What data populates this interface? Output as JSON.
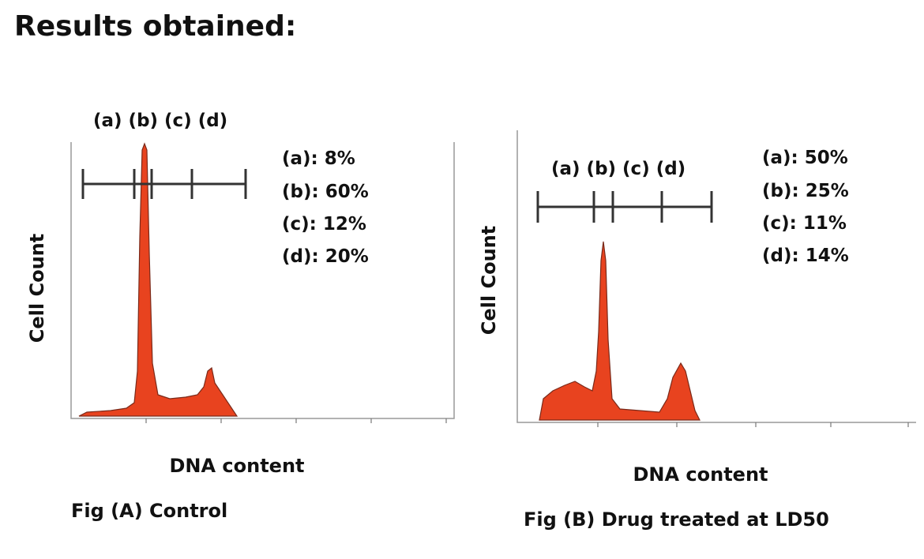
{
  "header": {
    "title": "Results obtained:"
  },
  "panels": [
    {
      "gate_labels": "(a) (b) (c) (d)",
      "percentages": [
        "(a): 8%",
        "(b): 60%",
        "(c): 12%",
        "(d): 20%"
      ],
      "y_label": "Cell Count",
      "x_label": "DNA content",
      "caption": "Fig (A) Control"
    },
    {
      "gate_labels": "(a) (b) (c) (d)",
      "percentages": [
        "(a): 50%",
        "(b): 25%",
        "(c): 11%",
        "(d): 14%"
      ],
      "y_label": "Cell Count",
      "x_label": "DNA content",
      "caption": "Fig (B) Drug treated at LD50"
    }
  ]
}
